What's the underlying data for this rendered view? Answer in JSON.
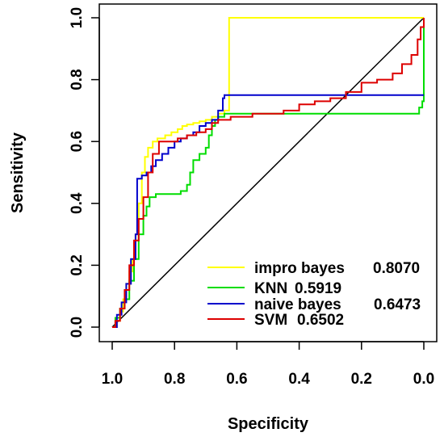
{
  "chart_data": {
    "type": "line",
    "title": "",
    "xlabel": "Specificity",
    "ylabel": "Sensitivity",
    "x_reversed": true,
    "xlim": [
      1.0,
      0.0
    ],
    "ylim": [
      0.0,
      1.0
    ],
    "x_ticks": [
      "1.0",
      "0.8",
      "0.6",
      "0.4",
      "0.2",
      "0.0"
    ],
    "y_ticks": [
      "0.0",
      "0.2",
      "0.4",
      "0.6",
      "0.8",
      "1.0"
    ],
    "grid": false,
    "legend_position": "bottom-right",
    "reference_line": {
      "from": [
        1.0,
        0.0
      ],
      "to": [
        0.0,
        1.0
      ],
      "color": "#000000"
    },
    "series": [
      {
        "name": "impro bayes",
        "auc_label": "0.8070",
        "color": "#ffff00",
        "x": [
          1.0,
          0.985,
          0.975,
          0.965,
          0.955,
          0.945,
          0.935,
          0.925,
          0.915,
          0.905,
          0.895,
          0.885,
          0.87,
          0.855,
          0.83,
          0.81,
          0.79,
          0.775,
          0.76,
          0.74,
          0.72,
          0.7,
          0.68,
          0.66,
          0.64,
          0.625,
          0.625,
          0.6,
          0.5,
          0.3,
          0.1,
          0.0
        ],
        "y": [
          0.0,
          0.02,
          0.05,
          0.09,
          0.14,
          0.18,
          0.22,
          0.3,
          0.4,
          0.5,
          0.55,
          0.58,
          0.6,
          0.61,
          0.62,
          0.63,
          0.64,
          0.65,
          0.655,
          0.66,
          0.665,
          0.67,
          0.68,
          0.69,
          0.7,
          0.7,
          1.0,
          1.0,
          1.0,
          1.0,
          1.0,
          1.0
        ]
      },
      {
        "name": "KNN",
        "auc_label": "0.5919",
        "color": "#00dd00",
        "x": [
          1.0,
          0.99,
          0.975,
          0.96,
          0.945,
          0.93,
          0.915,
          0.9,
          0.89,
          0.88,
          0.86,
          0.82,
          0.78,
          0.76,
          0.75,
          0.74,
          0.72,
          0.7,
          0.69,
          0.68,
          0.67,
          0.66,
          0.64,
          0.55,
          0.4,
          0.25,
          0.1,
          0.03,
          0.015,
          0.005,
          0.0
        ],
        "y": [
          0.0,
          0.03,
          0.06,
          0.09,
          0.15,
          0.22,
          0.3,
          0.36,
          0.39,
          0.42,
          0.43,
          0.43,
          0.44,
          0.46,
          0.5,
          0.54,
          0.56,
          0.58,
          0.62,
          0.65,
          0.67,
          0.68,
          0.69,
          0.69,
          0.69,
          0.69,
          0.69,
          0.69,
          0.71,
          0.73,
          1.0
        ]
      },
      {
        "name": "naive bayes",
        "auc_label": "0.6473",
        "color": "#0000cc",
        "x": [
          1.0,
          0.985,
          0.97,
          0.955,
          0.94,
          0.925,
          0.92,
          0.905,
          0.89,
          0.875,
          0.86,
          0.84,
          0.82,
          0.8,
          0.78,
          0.76,
          0.74,
          0.72,
          0.7,
          0.68,
          0.66,
          0.645,
          0.64,
          0.62,
          0.5,
          0.3,
          0.1,
          0.0
        ],
        "y": [
          0.0,
          0.04,
          0.08,
          0.14,
          0.22,
          0.3,
          0.48,
          0.49,
          0.5,
          0.52,
          0.54,
          0.56,
          0.58,
          0.6,
          0.61,
          0.62,
          0.63,
          0.65,
          0.66,
          0.67,
          0.7,
          0.74,
          0.75,
          0.75,
          0.75,
          0.75,
          0.75,
          0.75
        ]
      },
      {
        "name": "SVM",
        "auc_label": "0.6502",
        "color": "#dd0000",
        "x": [
          1.0,
          0.99,
          0.975,
          0.96,
          0.945,
          0.93,
          0.915,
          0.9,
          0.885,
          0.87,
          0.85,
          0.82,
          0.79,
          0.76,
          0.73,
          0.7,
          0.68,
          0.66,
          0.62,
          0.55,
          0.45,
          0.4,
          0.35,
          0.3,
          0.25,
          0.2,
          0.15,
          0.1,
          0.07,
          0.04,
          0.02,
          0.01,
          0.0
        ],
        "y": [
          0.0,
          0.02,
          0.06,
          0.12,
          0.2,
          0.28,
          0.35,
          0.42,
          0.5,
          0.56,
          0.6,
          0.6,
          0.61,
          0.62,
          0.63,
          0.64,
          0.66,
          0.67,
          0.68,
          0.69,
          0.7,
          0.72,
          0.73,
          0.74,
          0.76,
          0.79,
          0.8,
          0.82,
          0.85,
          0.88,
          0.93,
          0.97,
          1.0
        ]
      }
    ]
  }
}
